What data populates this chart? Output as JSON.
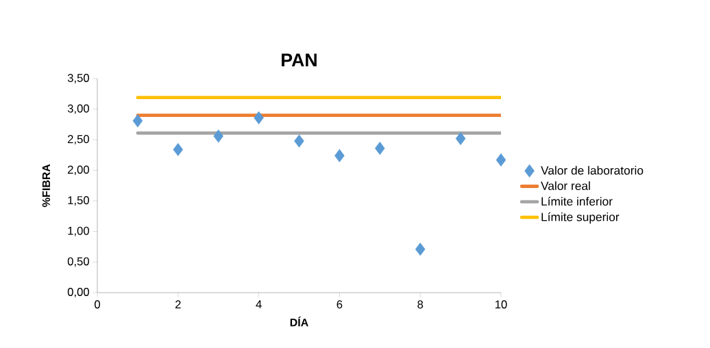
{
  "chart_data": {
    "type": "scatter",
    "title": "PAN",
    "xlabel": "DÍA",
    "ylabel": "%FIBRA",
    "marker": "diamond",
    "legend": "right",
    "grid": false,
    "xlim": [
      0,
      10
    ],
    "xticks": [
      0,
      2,
      4,
      6,
      8,
      10
    ],
    "ylim": [
      0,
      3.5
    ],
    "yticks": [
      {
        "value": 0,
        "label": "0,00"
      },
      {
        "value": 0.5,
        "label": "0,50"
      },
      {
        "value": 1,
        "label": "1,00"
      },
      {
        "value": 1.5,
        "label": "1,50"
      },
      {
        "value": 2,
        "label": "2,00"
      },
      {
        "value": 2.5,
        "label": "2,50"
      },
      {
        "value": 3,
        "label": "3,00"
      },
      {
        "value": 3.5,
        "label": "3,50"
      }
    ],
    "series": [
      {
        "name": "Valor de laboratorio",
        "color": "#5b9bd5",
        "x": [
          1,
          2,
          3,
          4,
          5,
          6,
          7,
          8,
          9,
          10
        ],
        "values": [
          2.81,
          2.34,
          2.56,
          2.86,
          2.48,
          2.24,
          2.36,
          0.71,
          2.52,
          2.17
        ]
      },
      {
        "name": "Valor real",
        "type": "line",
        "marker": "none",
        "color": "#ed7d31",
        "x": [
          1,
          10
        ],
        "values": [
          2.9,
          2.9
        ]
      },
      {
        "name": "Límite inferior",
        "type": "line",
        "marker": "none",
        "color": "#a5a5a5",
        "x": [
          1,
          10
        ],
        "values": [
          2.61,
          2.61
        ]
      },
      {
        "name": "Límite superior",
        "type": "line",
        "marker": "none",
        "color": "#ffc000",
        "x": [
          1,
          10
        ],
        "values": [
          3.19,
          3.19
        ]
      }
    ]
  }
}
